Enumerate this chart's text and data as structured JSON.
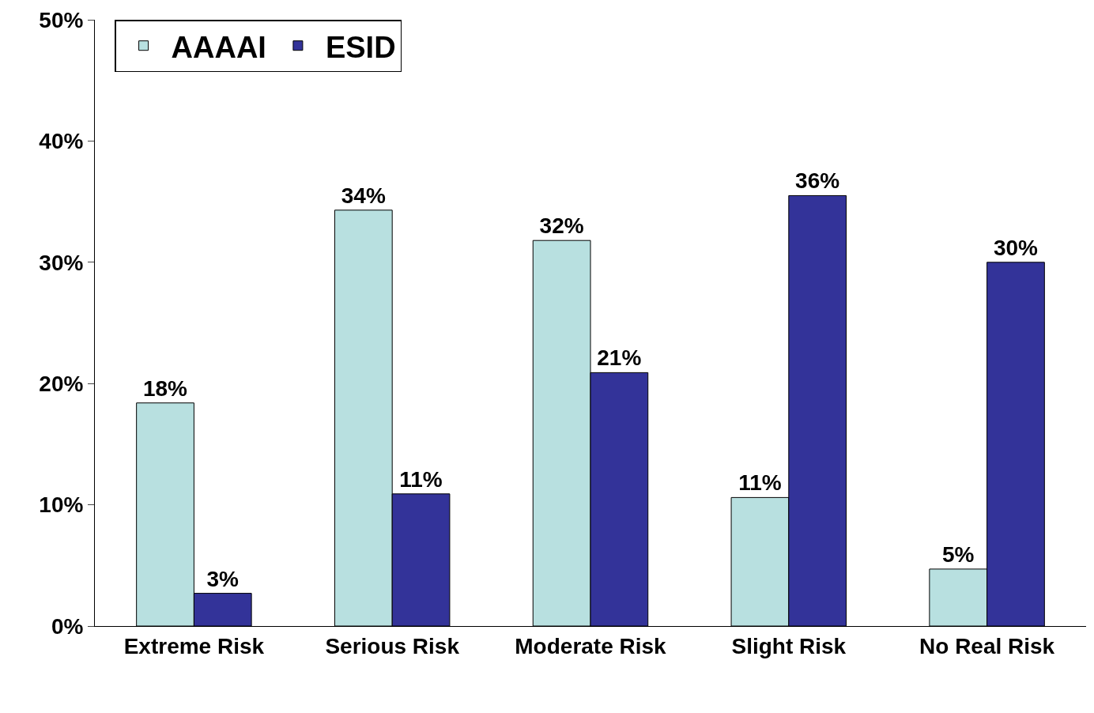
{
  "chart_data": {
    "type": "bar",
    "categories": [
      "Extreme Risk",
      "Serious Risk",
      "Moderate Risk",
      "Slight Risk",
      "No Real Risk"
    ],
    "series": [
      {
        "name": "AAAAI",
        "color": "#b8e0e0",
        "values": [
          18.4,
          34.3,
          31.8,
          10.6,
          4.7
        ],
        "value_labels": [
          "18%",
          "34%",
          "32%",
          "11%",
          "5%"
        ]
      },
      {
        "name": "ESID",
        "color": "#333399",
        "values": [
          2.7,
          10.9,
          20.9,
          35.5,
          30.0
        ],
        "value_labels": [
          "3%",
          "11%",
          "21%",
          "36%",
          "30%"
        ]
      }
    ],
    "ylim": [
      0,
      50
    ],
    "yticks": [
      {
        "value": 0,
        "label": "0%"
      },
      {
        "value": 10,
        "label": "10%"
      },
      {
        "value": 20,
        "label": "20%"
      },
      {
        "value": 30,
        "label": "30%"
      },
      {
        "value": 40,
        "label": "40%"
      },
      {
        "value": 50,
        "label": "50%"
      }
    ],
    "legend": "top left"
  }
}
